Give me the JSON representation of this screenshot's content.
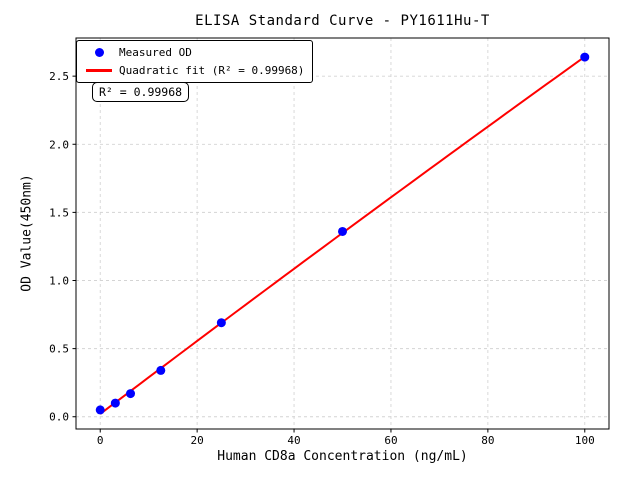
{
  "figure": {
    "title": "ELISA Standard Curve - PY1611Hu-T",
    "background": "#ffffff"
  },
  "axes": {
    "xlabel": "Human CD8a Concentration (ng/mL)",
    "ylabel": "OD Value(450nm)"
  },
  "legend": {
    "position": "upper-left",
    "items": [
      {
        "label": "Measured OD",
        "marker": "dot",
        "color": "#0000ff"
      },
      {
        "label": "Quadratic fit (R² = 0.99968)",
        "marker": "line",
        "color": "#ff0000"
      }
    ]
  },
  "annotation": {
    "text": "R² = 0.99968"
  },
  "chart_data": {
    "type": "scatter",
    "title": "ELISA Standard Curve - PY1611Hu-T",
    "xlabel": "Human CD8a Concentration (ng/mL)",
    "ylabel": "OD Value(450nm)",
    "x": [
      0,
      3.12,
      6.25,
      12.5,
      25,
      50,
      100
    ],
    "series": [
      {
        "name": "Measured OD",
        "type": "scatter",
        "color": "#0000ff",
        "values": [
          0.05,
          0.1,
          0.17,
          0.34,
          0.69,
          1.36,
          2.64
        ]
      },
      {
        "name": "Quadratic fit (R² = 0.99968)",
        "type": "quadratic-fit",
        "color": "#ff0000",
        "r_squared": 0.99968,
        "fit_range": [
          0,
          100
        ]
      }
    ],
    "xticks": [
      0,
      20,
      40,
      60,
      80,
      100
    ],
    "yticks": [
      0.0,
      0.5,
      1.0,
      1.5,
      2.0,
      2.5
    ],
    "xlim": [
      -5,
      105
    ],
    "ylim": [
      -0.09,
      2.78
    ],
    "grid": true,
    "legend_position": "upper-left"
  },
  "colors": {
    "scatter": "#0000ff",
    "fit_line": "#ff0000",
    "grid": "#d4d4d4",
    "spine": "#000000",
    "text": "#000000"
  }
}
